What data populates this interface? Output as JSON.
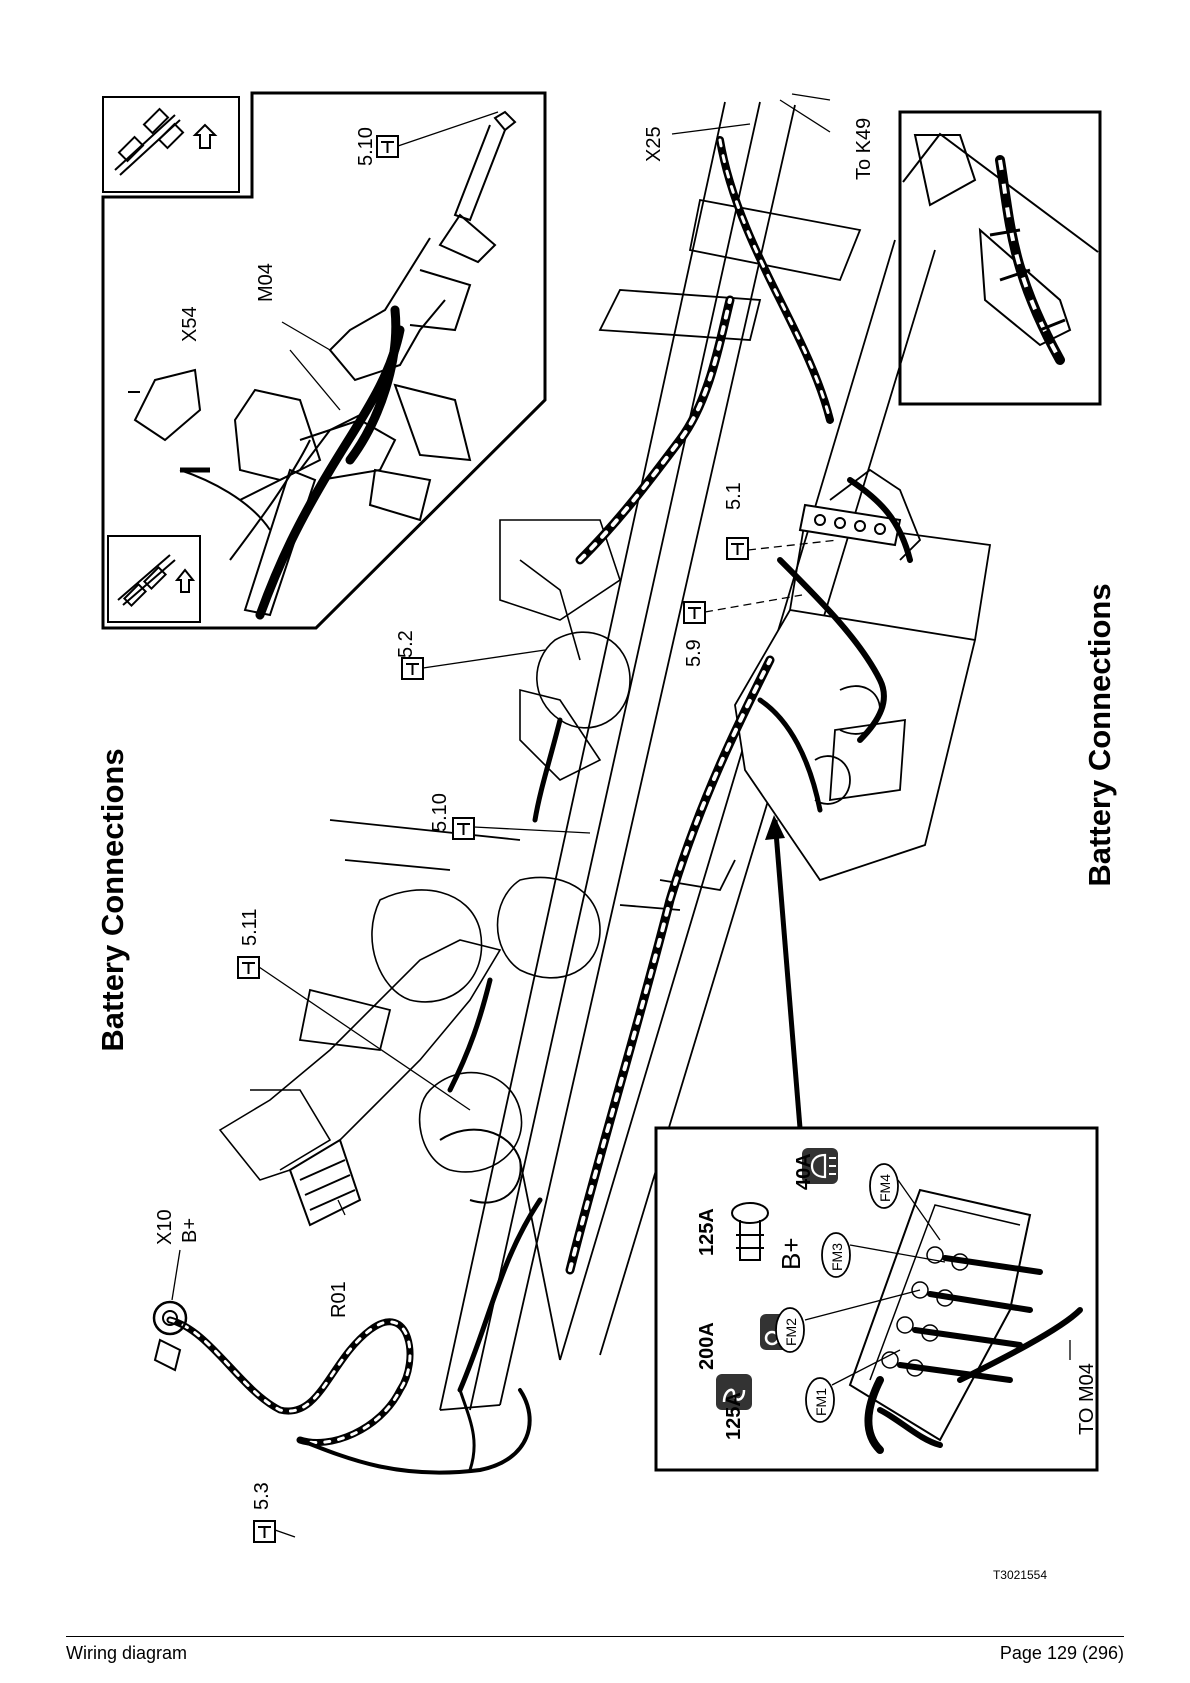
{
  "headings": {
    "left": "Battery Connections",
    "right": "Battery Connections"
  },
  "callouts": {
    "c_5_10_top": "5.10",
    "c_5_2": "5.2",
    "c_5_1": "5.1",
    "c_5_9": "5.9",
    "c_5_10_mid": "5.10",
    "c_5_11": "5.11",
    "c_5_3": "5.3"
  },
  "connectors": {
    "x25": "X25",
    "to_k49": "To K49",
    "m04": "M04",
    "x54": "X54",
    "x10": "X10",
    "b_plus": "B+",
    "r01": "R01",
    "to_m04": "TO M04"
  },
  "fuse_box": {
    "fuses": [
      {
        "rating": "125A",
        "code": "FM1"
      },
      {
        "rating": "200A",
        "code": "FM2"
      },
      {
        "rating": "125A",
        "code": "FM3"
      },
      {
        "rating": "40A",
        "code": "FM4"
      }
    ],
    "b_plus": "B+"
  },
  "image_code": "T3021554",
  "footer": {
    "left": "Wiring diagram",
    "right": "Page 129 (296)"
  },
  "colors": {
    "ink": "#000000",
    "paper": "#ffffff",
    "icon_fill": "#333333"
  },
  "icons": [
    "torque-tool-icon",
    "arrow-icon",
    "glow-heater-icon",
    "starter-icon",
    "lamp-icon"
  ]
}
